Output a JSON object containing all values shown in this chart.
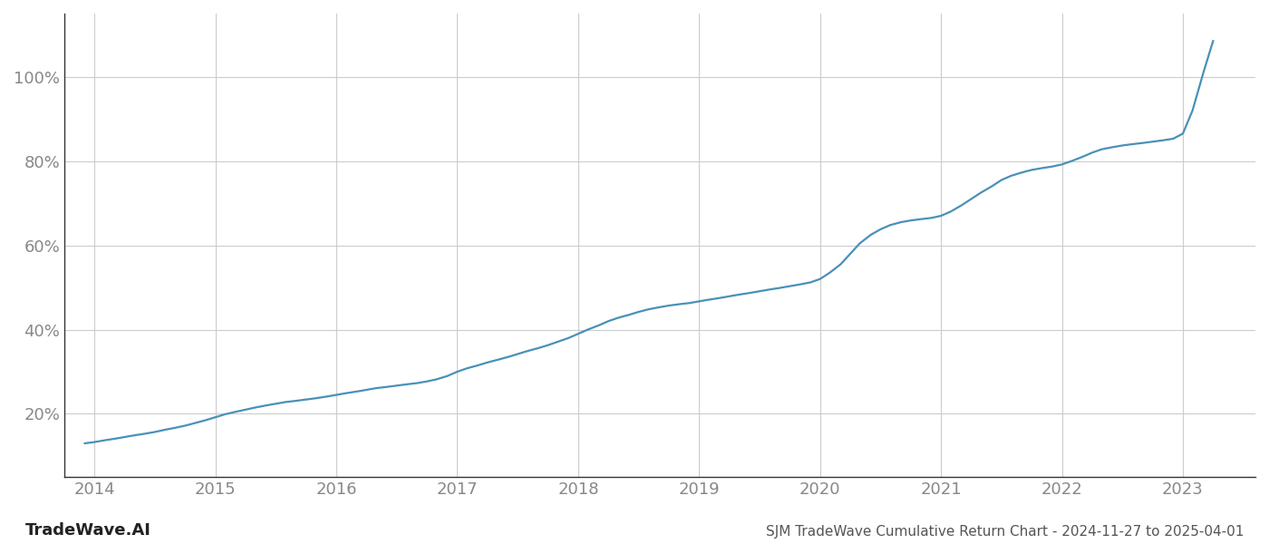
{
  "title": "SJM TradeWave Cumulative Return Chart - 2024-11-27 to 2025-04-01",
  "watermark": "TradeWave.AI",
  "line_color": "#4a90b8",
  "line_width": 1.6,
  "background_color": "#ffffff",
  "grid_color": "#cccccc",
  "x_years": [
    2013.92,
    2014.0,
    2014.08,
    2014.17,
    2014.25,
    2014.33,
    2014.42,
    2014.5,
    2014.58,
    2014.67,
    2014.75,
    2014.83,
    2014.92,
    2015.0,
    2015.08,
    2015.17,
    2015.25,
    2015.33,
    2015.42,
    2015.5,
    2015.58,
    2015.67,
    2015.75,
    2015.83,
    2015.92,
    2016.0,
    2016.08,
    2016.17,
    2016.25,
    2016.33,
    2016.42,
    2016.5,
    2016.58,
    2016.67,
    2016.75,
    2016.83,
    2016.92,
    2017.0,
    2017.08,
    2017.17,
    2017.25,
    2017.33,
    2017.42,
    2017.5,
    2017.58,
    2017.67,
    2017.75,
    2017.83,
    2017.92,
    2018.0,
    2018.08,
    2018.17,
    2018.25,
    2018.33,
    2018.42,
    2018.5,
    2018.58,
    2018.67,
    2018.75,
    2018.83,
    2018.92,
    2019.0,
    2019.08,
    2019.17,
    2019.25,
    2019.33,
    2019.42,
    2019.5,
    2019.58,
    2019.67,
    2019.75,
    2019.83,
    2019.92,
    2020.0,
    2020.08,
    2020.17,
    2020.25,
    2020.33,
    2020.42,
    2020.5,
    2020.58,
    2020.67,
    2020.75,
    2020.83,
    2020.92,
    2021.0,
    2021.08,
    2021.17,
    2021.25,
    2021.33,
    2021.42,
    2021.5,
    2021.58,
    2021.67,
    2021.75,
    2021.83,
    2021.92,
    2022.0,
    2022.08,
    2022.17,
    2022.25,
    2022.33,
    2022.42,
    2022.5,
    2022.58,
    2022.67,
    2022.75,
    2022.83,
    2022.92,
    2023.0,
    2023.08,
    2023.17,
    2023.25
  ],
  "y_values": [
    13.0,
    13.3,
    13.7,
    14.1,
    14.5,
    14.9,
    15.3,
    15.7,
    16.2,
    16.7,
    17.2,
    17.8,
    18.5,
    19.2,
    19.9,
    20.5,
    21.0,
    21.5,
    22.0,
    22.4,
    22.8,
    23.1,
    23.4,
    23.7,
    24.1,
    24.5,
    24.9,
    25.3,
    25.7,
    26.1,
    26.4,
    26.7,
    27.0,
    27.3,
    27.7,
    28.2,
    29.0,
    30.0,
    30.8,
    31.5,
    32.2,
    32.8,
    33.5,
    34.2,
    34.9,
    35.6,
    36.3,
    37.1,
    38.0,
    39.0,
    40.0,
    41.0,
    42.0,
    42.8,
    43.5,
    44.2,
    44.8,
    45.3,
    45.7,
    46.0,
    46.3,
    46.7,
    47.1,
    47.5,
    47.9,
    48.3,
    48.7,
    49.1,
    49.5,
    49.9,
    50.3,
    50.7,
    51.2,
    52.0,
    53.5,
    55.5,
    58.0,
    60.5,
    62.5,
    63.8,
    64.8,
    65.5,
    65.9,
    66.2,
    66.5,
    67.0,
    68.0,
    69.5,
    71.0,
    72.5,
    74.0,
    75.5,
    76.5,
    77.3,
    77.9,
    78.3,
    78.7,
    79.2,
    80.0,
    81.0,
    82.0,
    82.8,
    83.3,
    83.7,
    84.0,
    84.3,
    84.6,
    84.9,
    85.3,
    86.5,
    92.0,
    101.0,
    108.5
  ],
  "xlim": [
    2013.75,
    2023.6
  ],
  "ylim": [
    5,
    115
  ],
  "yticks": [
    20,
    40,
    60,
    80,
    100
  ],
  "xticks": [
    2014,
    2015,
    2016,
    2017,
    2018,
    2019,
    2020,
    2021,
    2022,
    2023
  ],
  "tick_fontsize": 13,
  "watermark_fontsize": 13,
  "title_fontsize": 11,
  "tick_color": "#888888"
}
